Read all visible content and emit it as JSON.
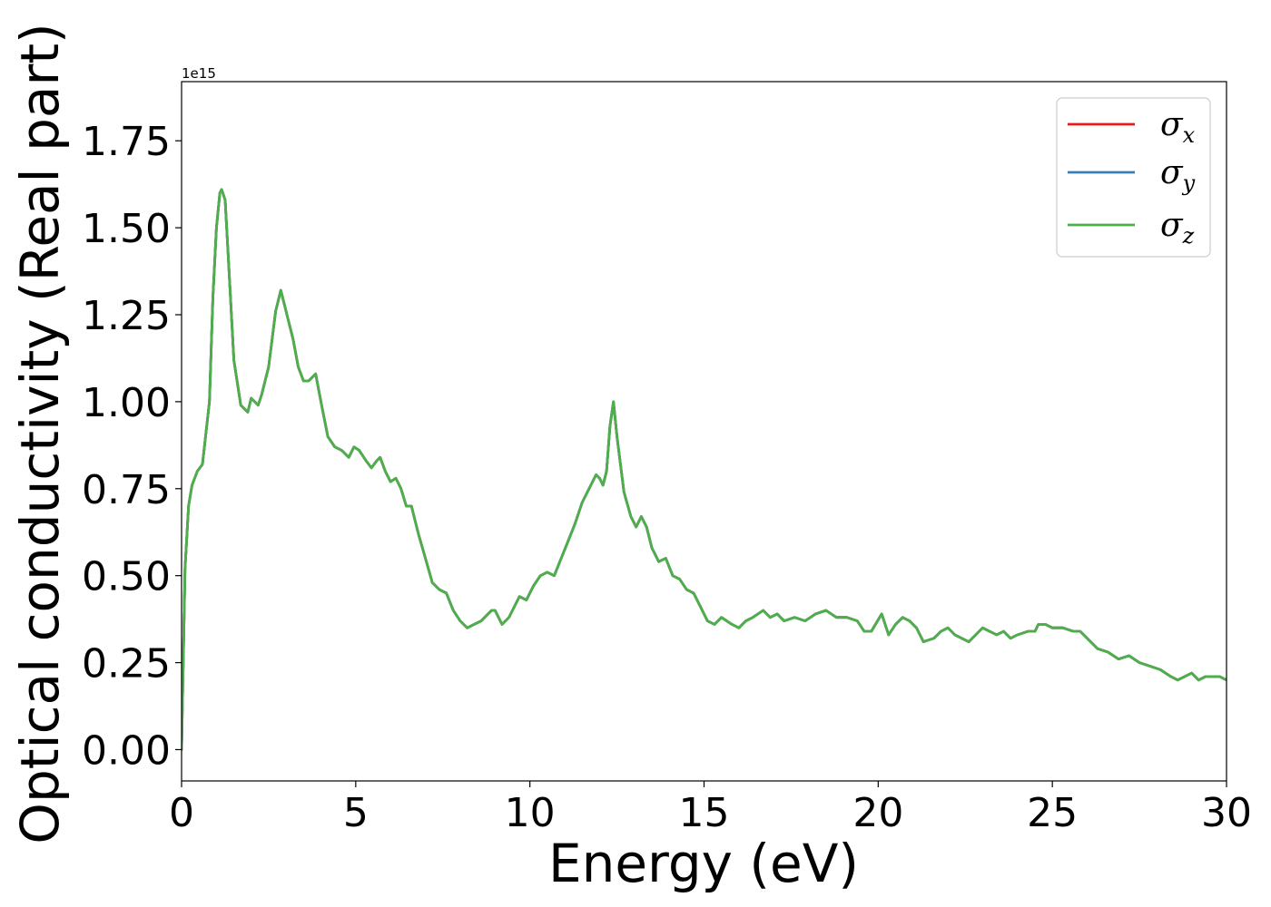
{
  "chart_data": {
    "type": "line",
    "title": "",
    "xlabel": "Energy (eV)",
    "ylabel": "Optical conductivity (Real part)",
    "offset_text": "1e15",
    "xlim": [
      0,
      30
    ],
    "ylim": [
      -0.09,
      1.92
    ],
    "y_scale_factor": "1e15",
    "xticks": [
      0,
      5,
      10,
      15,
      20,
      25,
      30
    ],
    "xtick_labels": [
      "0",
      "5",
      "10",
      "15",
      "20",
      "25",
      "30"
    ],
    "yticks": [
      0,
      0.25,
      0.5,
      0.75,
      1.0,
      1.25,
      1.5,
      1.75
    ],
    "ytick_labels": [
      "0.00",
      "0.25",
      "0.50",
      "0.75",
      "1.00",
      "1.25",
      "1.50",
      "1.75"
    ],
    "grid": false,
    "legend_position": "top-right",
    "legend": [
      {
        "symbol": "σ",
        "subscript": "x",
        "color": "#e41a1c"
      },
      {
        "symbol": "σ",
        "subscript": "y",
        "color": "#377eb8"
      },
      {
        "symbol": "σ",
        "subscript": "z",
        "color": "#4daf4a"
      }
    ],
    "x": [
      0,
      0.1,
      0.2,
      0.3,
      0.45,
      0.6,
      0.8,
      0.9,
      1.0,
      1.1,
      1.15,
      1.25,
      1.35,
      1.5,
      1.7,
      1.9,
      2.0,
      2.1,
      2.2,
      2.3,
      2.5,
      2.7,
      2.85,
      2.95,
      3.05,
      3.2,
      3.35,
      3.5,
      3.65,
      3.85,
      4.0,
      4.2,
      4.4,
      4.6,
      4.8,
      4.95,
      5.1,
      5.3,
      5.45,
      5.6,
      5.7,
      5.85,
      6.0,
      6.15,
      6.3,
      6.45,
      6.6,
      6.8,
      7.0,
      7.2,
      7.4,
      7.6,
      7.8,
      8.0,
      8.2,
      8.4,
      8.6,
      8.8,
      8.9,
      9.0,
      9.2,
      9.4,
      9.6,
      9.7,
      9.9,
      10.1,
      10.3,
      10.5,
      10.7,
      10.9,
      11.1,
      11.3,
      11.5,
      11.7,
      11.9,
      12.0,
      12.1,
      12.2,
      12.3,
      12.4,
      12.5,
      12.7,
      12.9,
      13.05,
      13.2,
      13.35,
      13.5,
      13.7,
      13.9,
      14.1,
      14.3,
      14.5,
      14.7,
      14.9,
      15.1,
      15.3,
      15.5,
      15.8,
      16.0,
      16.2,
      16.4,
      16.7,
      16.9,
      17.1,
      17.3,
      17.6,
      17.9,
      18.2,
      18.5,
      18.8,
      19.1,
      19.4,
      19.6,
      19.8,
      20.1,
      20.3,
      20.5,
      20.7,
      20.9,
      21.1,
      21.3,
      21.6,
      21.8,
      22.0,
      22.2,
      22.4,
      22.6,
      22.8,
      23.0,
      23.2,
      23.4,
      23.6,
      23.8,
      24.0,
      24.3,
      24.5,
      24.6,
      24.8,
      25.0,
      25.3,
      25.6,
      25.8,
      26.0,
      26.3,
      26.6,
      26.9,
      27.2,
      27.5,
      27.8,
      28.1,
      28.4,
      28.6,
      28.8,
      29.0,
      29.2,
      29.4,
      29.6,
      29.8,
      30.0
    ],
    "series": [
      {
        "name": "σx",
        "color": "#e41a1c",
        "values": [
          0.0,
          0.52,
          0.7,
          0.76,
          0.8,
          0.82,
          1.0,
          1.3,
          1.5,
          1.6,
          1.61,
          1.58,
          1.4,
          1.12,
          0.99,
          0.97,
          1.01,
          1.0,
          0.99,
          1.02,
          1.1,
          1.26,
          1.32,
          1.28,
          1.24,
          1.18,
          1.1,
          1.06,
          1.06,
          1.08,
          1.0,
          0.9,
          0.87,
          0.86,
          0.84,
          0.87,
          0.86,
          0.83,
          0.81,
          0.83,
          0.84,
          0.8,
          0.77,
          0.78,
          0.75,
          0.7,
          0.7,
          0.62,
          0.55,
          0.48,
          0.46,
          0.45,
          0.4,
          0.37,
          0.35,
          0.36,
          0.37,
          0.39,
          0.4,
          0.4,
          0.36,
          0.38,
          0.42,
          0.44,
          0.43,
          0.47,
          0.5,
          0.51,
          0.5,
          0.55,
          0.6,
          0.65,
          0.71,
          0.75,
          0.79,
          0.78,
          0.76,
          0.8,
          0.93,
          1.0,
          0.9,
          0.74,
          0.67,
          0.64,
          0.67,
          0.64,
          0.58,
          0.54,
          0.55,
          0.5,
          0.49,
          0.46,
          0.45,
          0.41,
          0.37,
          0.36,
          0.38,
          0.36,
          0.35,
          0.37,
          0.38,
          0.4,
          0.38,
          0.39,
          0.37,
          0.38,
          0.37,
          0.39,
          0.4,
          0.38,
          0.38,
          0.37,
          0.34,
          0.34,
          0.39,
          0.33,
          0.36,
          0.38,
          0.37,
          0.35,
          0.31,
          0.32,
          0.34,
          0.35,
          0.33,
          0.32,
          0.31,
          0.33,
          0.35,
          0.34,
          0.33,
          0.34,
          0.32,
          0.33,
          0.34,
          0.34,
          0.36,
          0.36,
          0.35,
          0.35,
          0.34,
          0.34,
          0.32,
          0.29,
          0.28,
          0.26,
          0.27,
          0.25,
          0.24,
          0.23,
          0.21,
          0.2,
          0.21,
          0.22,
          0.2,
          0.21,
          0.21,
          0.21,
          0.2
        ]
      },
      {
        "name": "σy",
        "color": "#377eb8",
        "values": [
          0.0,
          0.52,
          0.7,
          0.76,
          0.8,
          0.82,
          1.0,
          1.3,
          1.5,
          1.6,
          1.61,
          1.58,
          1.4,
          1.12,
          0.99,
          0.97,
          1.01,
          1.0,
          0.99,
          1.02,
          1.1,
          1.26,
          1.32,
          1.28,
          1.24,
          1.18,
          1.1,
          1.06,
          1.06,
          1.08,
          1.0,
          0.9,
          0.87,
          0.86,
          0.84,
          0.87,
          0.86,
          0.83,
          0.81,
          0.83,
          0.84,
          0.8,
          0.77,
          0.78,
          0.75,
          0.7,
          0.7,
          0.62,
          0.55,
          0.48,
          0.46,
          0.45,
          0.4,
          0.37,
          0.35,
          0.36,
          0.37,
          0.39,
          0.4,
          0.4,
          0.36,
          0.38,
          0.42,
          0.44,
          0.43,
          0.47,
          0.5,
          0.51,
          0.5,
          0.55,
          0.6,
          0.65,
          0.71,
          0.75,
          0.79,
          0.78,
          0.76,
          0.8,
          0.93,
          1.0,
          0.9,
          0.74,
          0.67,
          0.64,
          0.67,
          0.64,
          0.58,
          0.54,
          0.55,
          0.5,
          0.49,
          0.46,
          0.45,
          0.41,
          0.37,
          0.36,
          0.38,
          0.36,
          0.35,
          0.37,
          0.38,
          0.4,
          0.38,
          0.39,
          0.37,
          0.38,
          0.37,
          0.39,
          0.4,
          0.38,
          0.38,
          0.37,
          0.34,
          0.34,
          0.39,
          0.33,
          0.36,
          0.38,
          0.37,
          0.35,
          0.31,
          0.32,
          0.34,
          0.35,
          0.33,
          0.32,
          0.31,
          0.33,
          0.35,
          0.34,
          0.33,
          0.34,
          0.32,
          0.33,
          0.34,
          0.34,
          0.36,
          0.36,
          0.35,
          0.35,
          0.34,
          0.34,
          0.32,
          0.29,
          0.28,
          0.26,
          0.27,
          0.25,
          0.24,
          0.23,
          0.21,
          0.2,
          0.21,
          0.22,
          0.2,
          0.21,
          0.21,
          0.21,
          0.2
        ]
      },
      {
        "name": "σz",
        "color": "#4daf4a",
        "values": [
          0.0,
          0.52,
          0.7,
          0.76,
          0.8,
          0.82,
          1.0,
          1.3,
          1.5,
          1.6,
          1.61,
          1.58,
          1.4,
          1.12,
          0.99,
          0.97,
          1.01,
          1.0,
          0.99,
          1.02,
          1.1,
          1.26,
          1.32,
          1.28,
          1.24,
          1.18,
          1.1,
          1.06,
          1.06,
          1.08,
          1.0,
          0.9,
          0.87,
          0.86,
          0.84,
          0.87,
          0.86,
          0.83,
          0.81,
          0.83,
          0.84,
          0.8,
          0.77,
          0.78,
          0.75,
          0.7,
          0.7,
          0.62,
          0.55,
          0.48,
          0.46,
          0.45,
          0.4,
          0.37,
          0.35,
          0.36,
          0.37,
          0.39,
          0.4,
          0.4,
          0.36,
          0.38,
          0.42,
          0.44,
          0.43,
          0.47,
          0.5,
          0.51,
          0.5,
          0.55,
          0.6,
          0.65,
          0.71,
          0.75,
          0.79,
          0.78,
          0.76,
          0.8,
          0.93,
          1.0,
          0.9,
          0.74,
          0.67,
          0.64,
          0.67,
          0.64,
          0.58,
          0.54,
          0.55,
          0.5,
          0.49,
          0.46,
          0.45,
          0.41,
          0.37,
          0.36,
          0.38,
          0.36,
          0.35,
          0.37,
          0.38,
          0.4,
          0.38,
          0.39,
          0.37,
          0.38,
          0.37,
          0.39,
          0.4,
          0.38,
          0.38,
          0.37,
          0.34,
          0.34,
          0.39,
          0.33,
          0.36,
          0.38,
          0.37,
          0.35,
          0.31,
          0.32,
          0.34,
          0.35,
          0.33,
          0.32,
          0.31,
          0.33,
          0.35,
          0.34,
          0.33,
          0.34,
          0.32,
          0.33,
          0.34,
          0.34,
          0.36,
          0.36,
          0.35,
          0.35,
          0.34,
          0.34,
          0.32,
          0.29,
          0.28,
          0.26,
          0.27,
          0.25,
          0.24,
          0.23,
          0.21,
          0.2,
          0.21,
          0.22,
          0.2,
          0.21,
          0.21,
          0.21,
          0.2
        ]
      }
    ]
  }
}
